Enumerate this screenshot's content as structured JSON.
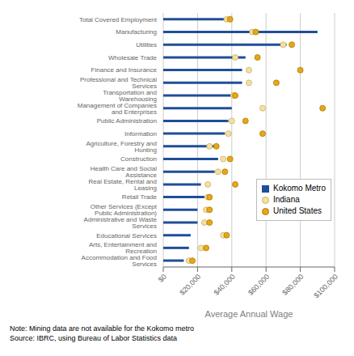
{
  "chart_data": {
    "type": "bar",
    "orientation": "horizontal",
    "categories": [
      "Total Covered Employment",
      "Manufacturing",
      "Utilities",
      "Wholesale Trade",
      "Finance and Insurance",
      "Professional and Technical Services",
      "Transportation and Warehousing",
      "Management of Companies and Enterprises",
      "Public Administration",
      "Information",
      "Agriculture, Forestry and Hunting",
      "Construction",
      "Health Care and Social Assistance",
      "Real Estate, Rental and Leasing",
      "Retail Trade",
      "Other Services (Except Public Administration)",
      "Administrative and Waste Services",
      "Educational Services",
      "Arts, Entertainment and Recreation",
      "Accommodation and Food Services"
    ],
    "series": [
      {
        "name": "Kokomo Metro",
        "type": "bar",
        "color": "#1f4e99",
        "values": [
          36000,
          90000,
          72000,
          48000,
          46000,
          46000,
          40000,
          40000,
          38000,
          36000,
          30000,
          32000,
          30000,
          22000,
          24000,
          20000,
          20000,
          16000,
          15000,
          12000
        ]
      },
      {
        "name": "Indiana",
        "type": "scatter",
        "marker": "circle",
        "color": "#f5e0a0",
        "values": [
          37000,
          52000,
          70000,
          42000,
          50000,
          50000,
          41000,
          58000,
          40000,
          38000,
          27000,
          35000,
          32000,
          26000,
          26000,
          25000,
          24000,
          35000,
          22000,
          15000
        ]
      },
      {
        "name": "United States",
        "type": "scatter",
        "marker": "circle",
        "color": "#e6a817",
        "values": [
          39000,
          54000,
          75000,
          55000,
          80000,
          66000,
          42000,
          93000,
          48000,
          58000,
          31000,
          39000,
          36000,
          42000,
          27000,
          27000,
          27000,
          37000,
          25000,
          17000
        ]
      }
    ],
    "xlabel": "Average Annual Wage",
    "xlim": [
      0,
      100000
    ],
    "xticks": [
      {
        "value": 0,
        "label": "$0"
      },
      {
        "value": 20000,
        "label": "$20,000"
      },
      {
        "value": 40000,
        "label": "$40,000"
      },
      {
        "value": 60000,
        "label": "$60,000"
      },
      {
        "value": 80000,
        "label": "$80,000"
      },
      {
        "value": 100000,
        "label": "$100,000"
      }
    ],
    "grid": true,
    "legend": "lower right",
    "annotations": [
      "Note: Mining data are not available for the Kokomo metro",
      "Source: IBRC, using Bureau of Labor Statistics data"
    ]
  }
}
